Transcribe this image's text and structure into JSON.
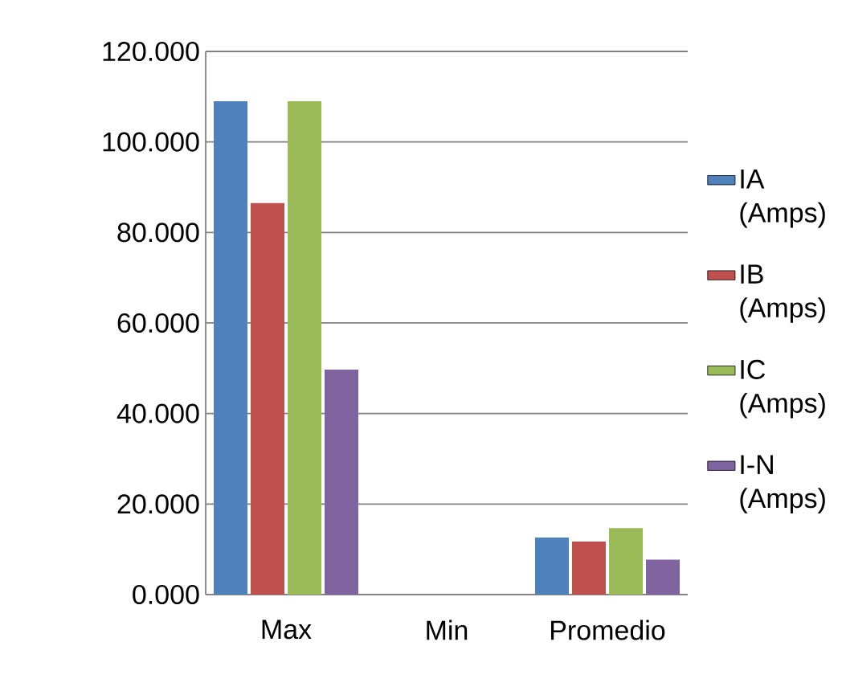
{
  "chart_data": {
    "type": "bar",
    "categories": [
      "Max",
      "Min",
      "Promedio"
    ],
    "series": [
      {
        "name": "IA (Amps)",
        "color": "#4f81bd",
        "values": [
          109.0,
          null,
          12.6
        ]
      },
      {
        "name": "IB (Amps)",
        "color": "#c0504d",
        "values": [
          86.5,
          null,
          11.7
        ]
      },
      {
        "name": "IC (Amps)",
        "color": "#9bbb59",
        "values": [
          109.0,
          null,
          14.7
        ]
      },
      {
        "name": "I-N (Amps)",
        "color": "#8064a2",
        "values": [
          49.7,
          null,
          7.7
        ]
      }
    ],
    "ylim": [
      0,
      120
    ],
    "yticks": [
      {
        "value": 0,
        "label": "0.000"
      },
      {
        "value": 20,
        "label": "20.000"
      },
      {
        "value": 40,
        "label": "40.000"
      },
      {
        "value": 60,
        "label": "60.000"
      },
      {
        "value": 80,
        "label": "80.000"
      },
      {
        "value": 100,
        "label": "100.000"
      },
      {
        "value": 120,
        "label": "120.000"
      }
    ],
    "grid": "y",
    "legend": "right"
  }
}
